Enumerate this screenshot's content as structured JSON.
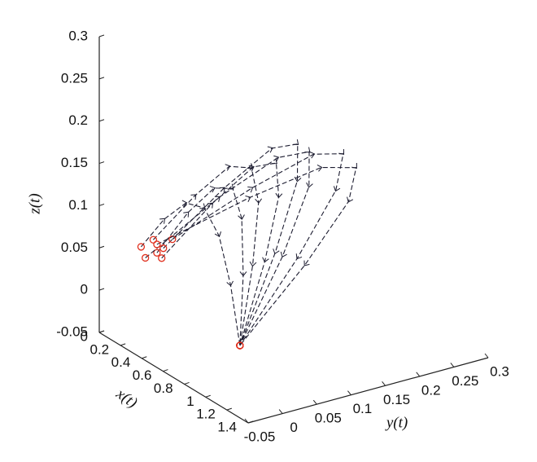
{
  "chart_data": {
    "type": "line3d",
    "xlabel": "x(t)",
    "ylabel": "y(t)",
    "zlabel": "z(t)",
    "xlim": [
      0,
      1.4
    ],
    "xticks": [
      0,
      0.2,
      0.4,
      0.6,
      0.8,
      1,
      1.2,
      1.4
    ],
    "ylim": [
      -0.05,
      0.3
    ],
    "yticks": [
      -0.05,
      0,
      0.05,
      0.1,
      0.15,
      0.2,
      0.25,
      0.3
    ],
    "zlim": [
      -0.05,
      0.3
    ],
    "zticks": [
      -0.05,
      0,
      0.05,
      0.1,
      0.15,
      0.2,
      0.25,
      0.3
    ],
    "color": "#1c1c30",
    "marker_color": "#e0301e",
    "series": [
      {
        "x": [
          0.2,
          0.333,
          0.467,
          0.6,
          0.733,
          0.867,
          1.0
        ],
        "y": [
          -0.02,
          -0.007,
          0.004,
          0.01,
          0.011,
          0.007,
          0
        ],
        "z": [
          0.06,
          0.1,
          0.127,
          0.13,
          0.107,
          0.06,
          0
        ]
      },
      {
        "x": [
          0.22,
          0.35,
          0.48,
          0.61,
          0.74,
          0.87,
          1.0
        ],
        "y": [
          0,
          0.025,
          0.043,
          0.05,
          0.043,
          0.025,
          0
        ],
        "z": [
          0.05,
          0.102,
          0.137,
          0.145,
          0.121,
          0.068,
          0
        ]
      },
      {
        "x": [
          0.25,
          0.375,
          0.5,
          0.625,
          0.75,
          0.875,
          1.0
        ],
        "y": [
          -0.01,
          0.032,
          0.062,
          0.075,
          0.066,
          0.038,
          0
        ],
        "z": [
          0.07,
          0.123,
          0.16,
          0.165,
          0.136,
          0.077,
          0
        ]
      },
      {
        "x": [
          0.2,
          0.333,
          0.467,
          0.6,
          0.733,
          0.867,
          1.0
        ],
        "y": [
          0.01,
          0.063,
          0.102,
          0.115,
          0.098,
          0.057,
          0
        ],
        "z": [
          0.04,
          0.103,
          0.148,
          0.16,
          0.134,
          0.077,
          0
        ]
      },
      {
        "x": [
          0.28,
          0.4,
          0.52,
          0.64,
          0.76,
          0.88,
          1.0
        ],
        "y": [
          0,
          0.07,
          0.121,
          0.14,
          0.121,
          0.07,
          0
        ],
        "z": [
          0.06,
          0.125,
          0.17,
          0.18,
          0.15,
          0.085,
          0
        ]
      },
      {
        "x": [
          0.24,
          0.367,
          0.493,
          0.62,
          0.747,
          0.873,
          1.0
        ],
        "y": [
          -0.02,
          0.068,
          0.134,
          0.16,
          0.14,
          0.082,
          0
        ],
        "z": [
          0.05,
          0.112,
          0.154,
          0.165,
          0.138,
          0.078,
          0
        ]
      },
      {
        "x": [
          0.3,
          0.417,
          0.533,
          0.65,
          0.767,
          0.883,
          1.0
        ],
        "y": [
          0.01,
          0.108,
          0.18,
          0.205,
          0.176,
          0.102,
          0
        ],
        "z": [
          0.07,
          0.118,
          0.151,
          0.155,
          0.127,
          0.072,
          0
        ]
      },
      {
        "x": [
          0.22,
          0.35,
          0.48,
          0.61,
          0.74,
          0.87,
          1.0
        ],
        "y": [
          0,
          0.115,
          0.199,
          0.23,
          0.199,
          0.115,
          0
        ],
        "z": [
          0.06,
          0.1,
          0.127,
          0.13,
          0.107,
          0.06,
          0
        ]
      }
    ]
  }
}
